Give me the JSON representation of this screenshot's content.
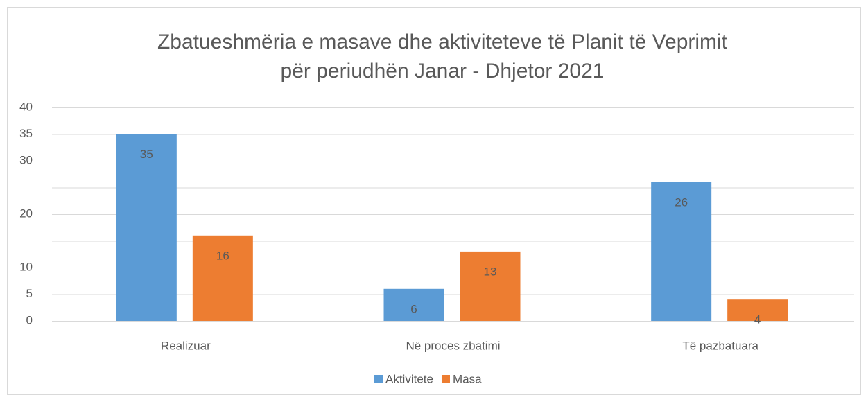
{
  "chart_data": {
    "type": "bar",
    "title": [
      "Zbatueshmëria e masave dhe aktiviteteve të Planit të Veprimit",
      "për periudhën Janar - Dhjetor 2021"
    ],
    "categories": [
      "Realizuar",
      "Në proces zbatimi",
      "Të pazbatuara"
    ],
    "series": [
      {
        "name": "Aktivitete",
        "color": "#5b9bd5",
        "values": [
          35,
          6,
          26
        ]
      },
      {
        "name": "Masa",
        "color": "#ed7d31",
        "values": [
          16,
          13,
          4
        ]
      }
    ],
    "ylim": [
      0,
      40
    ],
    "yticks": [
      0,
      5,
      10,
      {
        "value": 15,
        "label": null
      },
      20,
      {
        "value": 25,
        "label": null
      },
      30,
      35,
      40
    ],
    "grid": true,
    "legend": "bottom"
  }
}
